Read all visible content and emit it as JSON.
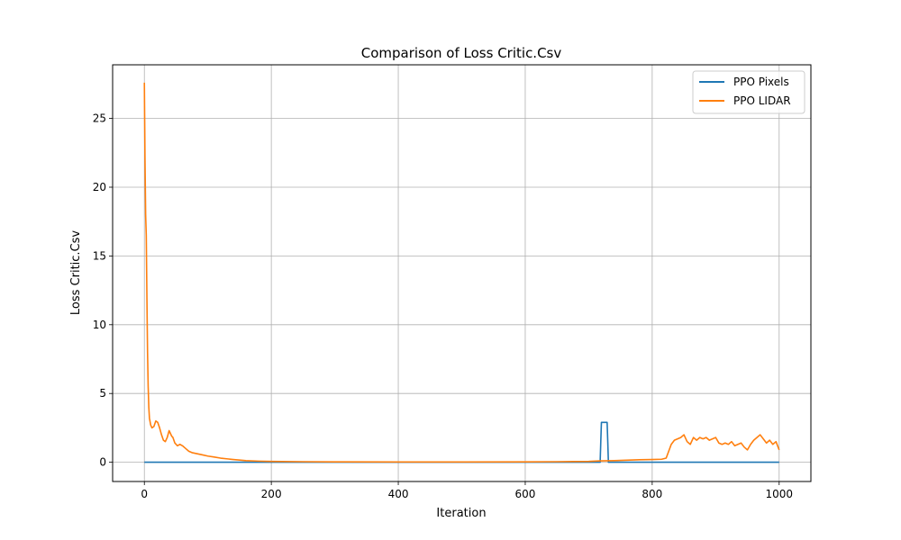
{
  "chart_data": {
    "type": "line",
    "title": "Comparison of Loss Critic.Csv",
    "xlabel": "Iteration",
    "ylabel": "Loss Critic.Csv",
    "xlim": [
      -50,
      1050
    ],
    "ylim": [
      -1.4,
      28.9
    ],
    "xticks": [
      0,
      200,
      400,
      600,
      800,
      1000
    ],
    "yticks": [
      0,
      5,
      10,
      15,
      20,
      25
    ],
    "grid": true,
    "legend_position": "top-right",
    "series": [
      {
        "name": "PPO Pixels",
        "color": "#1f77b4",
        "x": [
          0,
          718,
          719,
          720,
          729,
          730,
          731,
          1000
        ],
        "y": [
          0.0,
          0.0,
          1.5,
          2.9,
          2.9,
          1.5,
          0.0,
          0.0
        ]
      },
      {
        "name": "PPO LIDAR",
        "color": "#ff7f0e",
        "x": [
          0,
          1,
          2,
          3,
          4,
          5,
          6,
          7,
          8,
          10,
          12,
          15,
          18,
          21,
          24,
          27,
          30,
          33,
          36,
          39,
          41,
          43,
          45,
          48,
          52,
          56,
          60,
          65,
          70,
          75,
          80,
          90,
          100,
          110,
          120,
          140,
          160,
          180,
          200,
          250,
          300,
          400,
          500,
          600,
          650,
          700,
          718,
          740,
          760,
          780,
          800,
          815,
          822,
          826,
          830,
          835,
          840,
          845,
          850,
          855,
          860,
          865,
          870,
          875,
          880,
          885,
          890,
          895,
          900,
          905,
          910,
          915,
          920,
          925,
          930,
          935,
          940,
          945,
          950,
          955,
          960,
          965,
          970,
          975,
          980,
          985,
          990,
          995,
          1000
        ],
        "y": [
          27.6,
          22.0,
          18.0,
          16.5,
          12.0,
          8.0,
          5.5,
          4.0,
          3.2,
          2.7,
          2.5,
          2.6,
          3.0,
          2.9,
          2.5,
          2.0,
          1.6,
          1.5,
          1.8,
          2.3,
          2.1,
          1.9,
          1.8,
          1.4,
          1.2,
          1.3,
          1.2,
          1.0,
          0.8,
          0.7,
          0.65,
          0.55,
          0.45,
          0.38,
          0.3,
          0.2,
          0.12,
          0.08,
          0.06,
          0.04,
          0.03,
          0.02,
          0.02,
          0.03,
          0.04,
          0.06,
          0.1,
          0.12,
          0.15,
          0.18,
          0.2,
          0.22,
          0.3,
          0.8,
          1.3,
          1.6,
          1.7,
          1.8,
          2.0,
          1.5,
          1.3,
          1.8,
          1.6,
          1.8,
          1.7,
          1.8,
          1.6,
          1.7,
          1.8,
          1.4,
          1.3,
          1.4,
          1.3,
          1.5,
          1.2,
          1.3,
          1.4,
          1.1,
          0.9,
          1.3,
          1.6,
          1.8,
          2.0,
          1.7,
          1.4,
          1.6,
          1.3,
          1.5,
          0.9
        ]
      }
    ]
  }
}
